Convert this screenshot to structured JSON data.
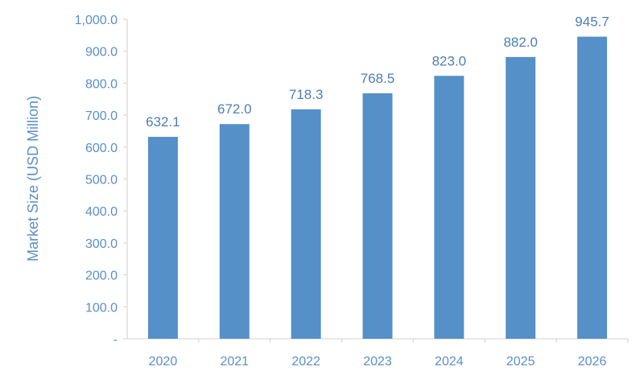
{
  "chart_data": {
    "type": "bar",
    "categories": [
      "2020",
      "2021",
      "2022",
      "2023",
      "2024",
      "2025",
      "2026"
    ],
    "values": [
      632.1,
      672.0,
      718.3,
      768.5,
      823.0,
      882.0,
      945.7
    ],
    "value_labels": [
      "632.1",
      "672.0",
      "718.3",
      "768.5",
      "823.0",
      "882.0",
      "945.7"
    ],
    "title": "",
    "xlabel": "",
    "ylabel": "Market Size (USD Million)",
    "ylim": [
      0,
      1000
    ],
    "yticks": [
      0,
      100,
      200,
      300,
      400,
      500,
      600,
      700,
      800,
      900,
      1000
    ],
    "ytick_labels": [
      "-",
      "100.0",
      "200.0",
      "300.0",
      "400.0",
      "500.0",
      "600.0",
      "700.0",
      "800.0",
      "900.0",
      "1,000.0"
    ],
    "grid": false,
    "legend": "none",
    "colors": {
      "bar": "#5590c8",
      "axis": "#d9d9d9",
      "text": "#5b8fc7"
    }
  }
}
